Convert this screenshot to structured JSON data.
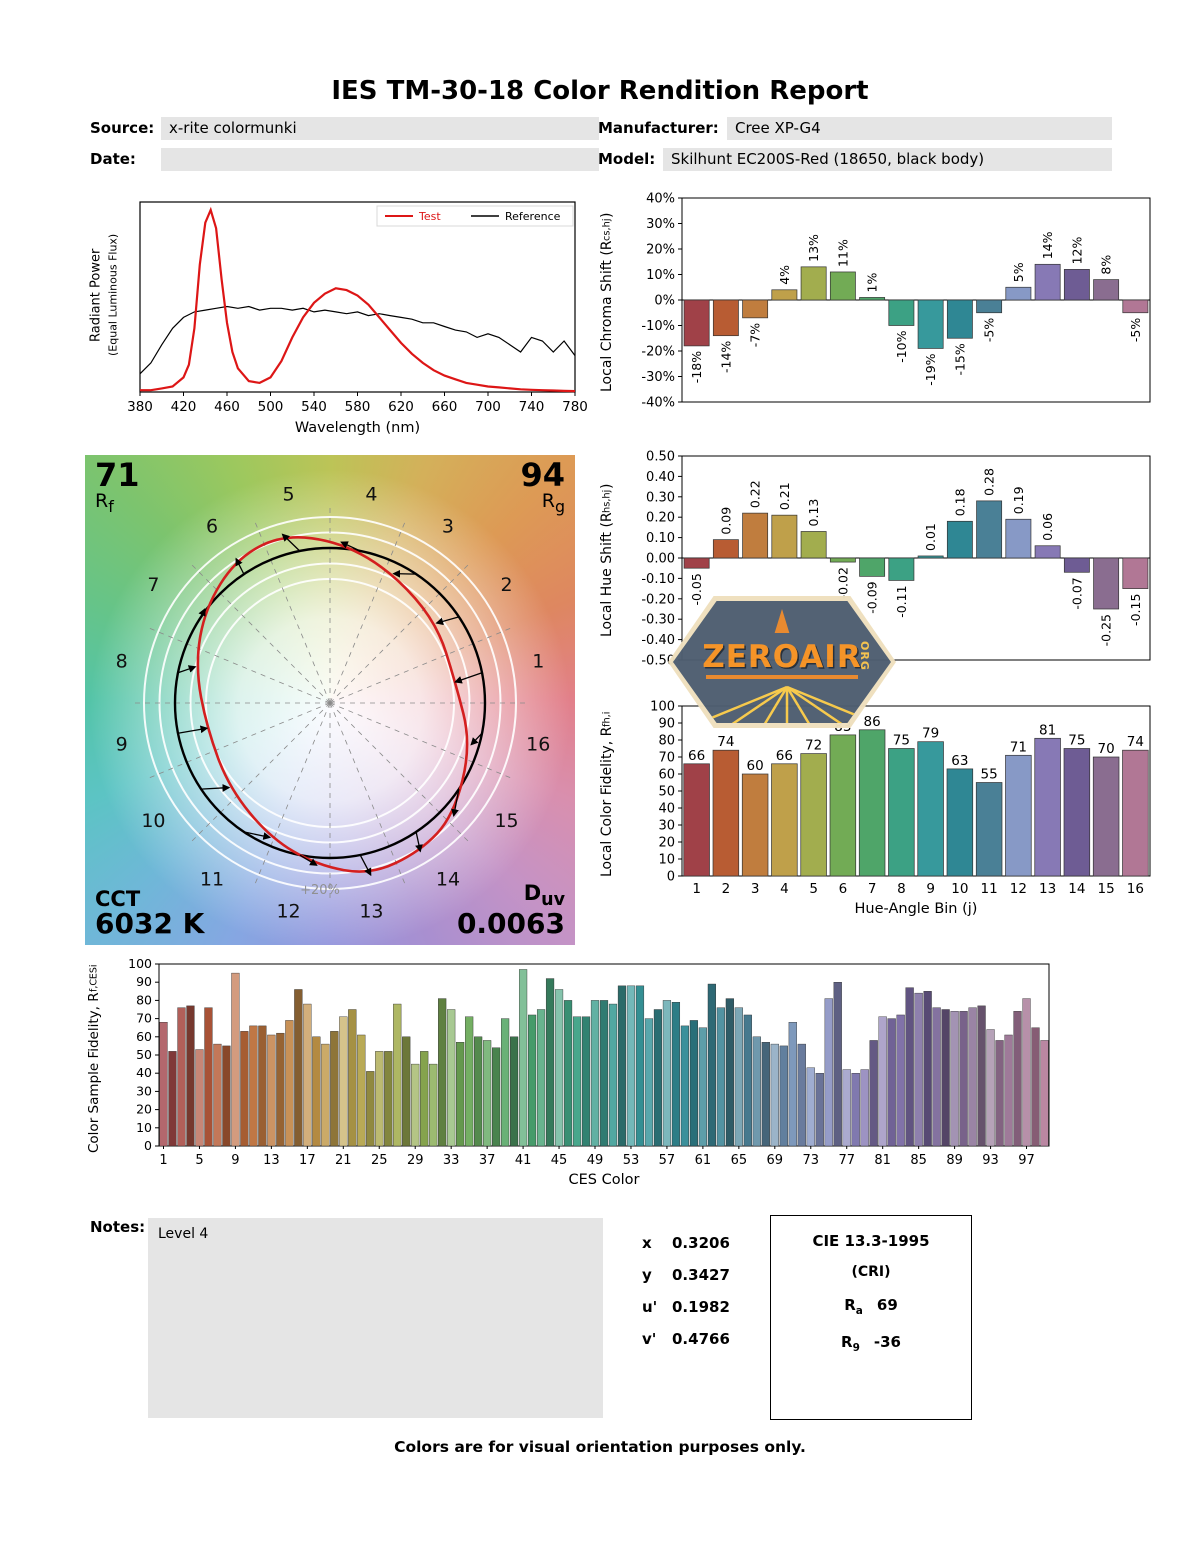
{
  "header": {
    "title": "IES TM-30-18 Color Rendition Report",
    "source_label": "Source:",
    "source_value": "x-rite colormunki",
    "manufacturer_label": "Manufacturer:",
    "manufacturer_value": "Cree XP-G4",
    "date_label": "Date:",
    "date_value": "",
    "model_label": "Model:",
    "model_value": "Skilhunt EC200S-Red (18650, black body)"
  },
  "cvg": {
    "rf_value": "71",
    "rf_pre": "R",
    "rf_sub": "f",
    "rg_value": "94",
    "rg_pre": "R",
    "rg_sub": "g",
    "cct_label": "CCT",
    "cct_value": "6032 K",
    "duv_pre": "D",
    "duv_sub": "uv",
    "duv_value": "0.0063",
    "ring_label": "+20%",
    "bin_numbers": [
      "1",
      "2",
      "3",
      "4",
      "5",
      "6",
      "7",
      "8",
      "9",
      "10",
      "11",
      "12",
      "13",
      "14",
      "15",
      "16"
    ]
  },
  "watermark": {
    "name": "ZEROAIR",
    "suffix": "ORG"
  },
  "notes": {
    "label": "Notes:",
    "text": "Level 4"
  },
  "chromaticity": {
    "rows": [
      {
        "label": "x",
        "value": "0.3206"
      },
      {
        "label": "y",
        "value": "0.3427"
      },
      {
        "label": "u'",
        "value": "0.1982"
      },
      {
        "label": "v'",
        "value": "0.4766"
      }
    ]
  },
  "cri_box": {
    "title": "CIE 13.3-1995",
    "subtitle": "(CRI)",
    "ra_pre": "R",
    "ra_sub": "a",
    "ra_value": "69",
    "r9_pre": "R",
    "r9_sub": "9",
    "r9_value": "-36"
  },
  "footer": "Colors are for visual orientation purposes only.",
  "bin_colors": [
    "#a04148",
    "#b85c33",
    "#c07d3e",
    "#bfa04a",
    "#a2ad4e",
    "#72ab55",
    "#4fa569",
    "#3ca184",
    "#37999c",
    "#2f8794",
    "#4a8096",
    "#8799c6",
    "#8779b5",
    "#6e5c94",
    "#8a6d90",
    "#b17795"
  ],
  "chart_data": [
    {
      "id": "spd",
      "type": "line",
      "ylabel1": "Radiant Power",
      "ylabel2": "(Equal Luminous Flux)",
      "xlabel": "Wavelength (nm)",
      "xlim": [
        380,
        780
      ],
      "xticks": [
        380,
        420,
        460,
        500,
        540,
        580,
        620,
        660,
        700,
        740,
        780
      ],
      "series": [
        {
          "name": "Test",
          "color": "#dd1616",
          "x": [
            380,
            390,
            400,
            410,
            420,
            425,
            430,
            435,
            440,
            445,
            450,
            455,
            460,
            465,
            470,
            480,
            490,
            500,
            510,
            520,
            530,
            540,
            550,
            560,
            570,
            580,
            590,
            600,
            610,
            620,
            630,
            640,
            650,
            660,
            670,
            680,
            690,
            700,
            710,
            720,
            730,
            740,
            750,
            760,
            770,
            780
          ],
          "y": [
            0.01,
            0.01,
            0.02,
            0.03,
            0.08,
            0.15,
            0.35,
            0.7,
            0.93,
            1.0,
            0.9,
            0.62,
            0.38,
            0.22,
            0.13,
            0.06,
            0.05,
            0.08,
            0.17,
            0.3,
            0.41,
            0.49,
            0.54,
            0.57,
            0.56,
            0.53,
            0.48,
            0.41,
            0.34,
            0.27,
            0.21,
            0.16,
            0.12,
            0.09,
            0.07,
            0.05,
            0.04,
            0.03,
            0.025,
            0.02,
            0.015,
            0.012,
            0.01,
            0.008,
            0.006,
            0.005
          ]
        },
        {
          "name": "Reference",
          "color": "#000000",
          "x": [
            380,
            390,
            400,
            410,
            420,
            430,
            440,
            450,
            460,
            470,
            480,
            490,
            500,
            510,
            520,
            530,
            540,
            550,
            560,
            570,
            580,
            590,
            600,
            610,
            620,
            630,
            640,
            650,
            660,
            670,
            680,
            690,
            700,
            710,
            720,
            730,
            740,
            750,
            760,
            770,
            780
          ],
          "y": [
            0.1,
            0.16,
            0.26,
            0.35,
            0.41,
            0.44,
            0.45,
            0.46,
            0.47,
            0.46,
            0.47,
            0.45,
            0.46,
            0.46,
            0.45,
            0.46,
            0.44,
            0.45,
            0.44,
            0.43,
            0.44,
            0.42,
            0.43,
            0.42,
            0.41,
            0.4,
            0.38,
            0.38,
            0.36,
            0.34,
            0.33,
            0.3,
            0.32,
            0.3,
            0.26,
            0.22,
            0.3,
            0.28,
            0.22,
            0.28,
            0.2
          ]
        }
      ]
    },
    {
      "id": "chroma_shift",
      "type": "bar",
      "ylabel_pre": "Local Chroma Shift (R",
      "ylabel_sub": "cs,hj",
      "ylabel_post": ")",
      "ylim": [
        -40,
        40
      ],
      "ytick_step": 10,
      "unit": "%",
      "categories": [
        1,
        2,
        3,
        4,
        5,
        6,
        7,
        8,
        9,
        10,
        11,
        12,
        13,
        14,
        15,
        16
      ],
      "values": [
        -18,
        -14,
        -7,
        4,
        13,
        11,
        1,
        -10,
        -19,
        -15,
        -5,
        5,
        14,
        12,
        8,
        -5
      ]
    },
    {
      "id": "hue_shift",
      "type": "bar",
      "ylabel_pre": "Local Hue Shift (R",
      "ylabel_sub": "hs,hj",
      "ylabel_post": ")",
      "ylim": [
        -0.5,
        0.5
      ],
      "ytick_step": 0.1,
      "categories": [
        1,
        2,
        3,
        4,
        5,
        6,
        7,
        8,
        9,
        10,
        11,
        12,
        13,
        14,
        15,
        16
      ],
      "values": [
        -0.05,
        0.09,
        0.22,
        0.21,
        0.13,
        -0.02,
        -0.09,
        -0.11,
        0.01,
        0.18,
        0.28,
        0.19,
        0.06,
        -0.07,
        -0.25,
        -0.15
      ]
    },
    {
      "id": "local_fidelity",
      "type": "bar",
      "ylabel_pre": "Local Color Fidelity, R",
      "ylabel_sub": "fh,i",
      "ylabel_post": "",
      "xlabel": "Hue-Angle Bin (j)",
      "ylim": [
        0,
        100
      ],
      "ytick_step": 10,
      "categories": [
        1,
        2,
        3,
        4,
        5,
        6,
        7,
        8,
        9,
        10,
        11,
        12,
        13,
        14,
        15,
        16
      ],
      "values": [
        66,
        74,
        60,
        66,
        72,
        83,
        86,
        75,
        79,
        63,
        55,
        71,
        81,
        75,
        70,
        74
      ]
    },
    {
      "id": "ces_fidelity",
      "type": "bar",
      "ylabel_pre": "Color Sample Fidelity, R",
      "ylabel_sub": "f,CESi",
      "ylabel_post": "",
      "xlabel": "CES Color",
      "ylim": [
        0,
        100
      ],
      "ytick_step": 10,
      "xtick_labels": [
        1,
        5,
        9,
        13,
        17,
        21,
        25,
        29,
        33,
        37,
        41,
        45,
        49,
        53,
        57,
        61,
        65,
        69,
        73,
        77,
        81,
        85,
        89,
        93,
        97
      ],
      "values": [
        68,
        52,
        76,
        77,
        53,
        76,
        56,
        55,
        95,
        63,
        66,
        66,
        61,
        62,
        69,
        86,
        78,
        60,
        56,
        63,
        71,
        75,
        61,
        41,
        52,
        52,
        78,
        60,
        45,
        52,
        45,
        81,
        75,
        57,
        71,
        60,
        58,
        54,
        70,
        60,
        97,
        72,
        75,
        92,
        86,
        80,
        71,
        71,
        80,
        80,
        78,
        88,
        88,
        88,
        70,
        75,
        80,
        79,
        66,
        69,
        65,
        89,
        76,
        81,
        76,
        72,
        60,
        57,
        56,
        55,
        68,
        56,
        43,
        40,
        81,
        90,
        42,
        40,
        42,
        58,
        71,
        70,
        72,
        87,
        84,
        85,
        76,
        75,
        74,
        74,
        76,
        77,
        64,
        58,
        61,
        74,
        81,
        65,
        58
      ]
    }
  ]
}
